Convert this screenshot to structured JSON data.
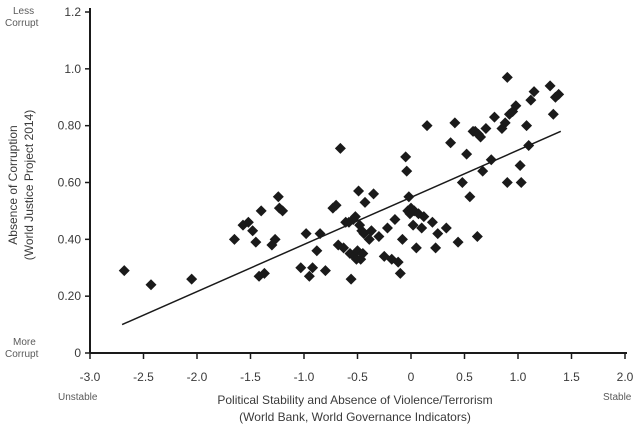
{
  "chart_data": {
    "type": "scatter",
    "xlabel": [
      "Political Stability and Absence of Violence/Terrorism",
      "(World Bank, World Governance Indicators)"
    ],
    "ylabel": [
      "Absence of Corruption",
      "(World Justice Project 2014)"
    ],
    "xlim": [
      -3.0,
      2.0
    ],
    "ylim": [
      0,
      1.2
    ],
    "x_ticks": [
      -3.0,
      -2.5,
      -2.0,
      -1.5,
      -1.0,
      -0.5,
      0,
      0.5,
      1.0,
      1.5,
      2.0
    ],
    "x_tick_labels": [
      "-3.0",
      "-2.5",
      "-2.0",
      "-1.5",
      "-1.0",
      "-0.5",
      "0",
      "0.5",
      "1.0",
      "1.5",
      "2.0"
    ],
    "y_ticks": [
      0,
      0.2,
      0.4,
      0.6,
      0.8,
      1.0,
      1.2
    ],
    "y_tick_labels": [
      "0",
      "0.20",
      "0.40",
      "0.60",
      "0.80",
      "1.0",
      "1.2"
    ],
    "annotations": {
      "x_left": "Unstable",
      "x_right": "Stable",
      "y_top": [
        "Less",
        "Corrupt"
      ],
      "y_bottom": [
        "More",
        "Corrupt"
      ]
    },
    "trendline": {
      "x": [
        -2.7,
        1.4
      ],
      "y": [
        0.1,
        0.78
      ]
    },
    "marker": "diamond",
    "color": "#1a1a1a",
    "points": [
      [
        -2.68,
        0.29
      ],
      [
        -2.43,
        0.24
      ],
      [
        -2.05,
        0.26
      ],
      [
        -1.65,
        0.4
      ],
      [
        -1.57,
        0.45
      ],
      [
        -1.52,
        0.46
      ],
      [
        -1.48,
        0.43
      ],
      [
        -1.45,
        0.39
      ],
      [
        -1.42,
        0.27
      ],
      [
        -1.4,
        0.5
      ],
      [
        -1.37,
        0.28
      ],
      [
        -1.3,
        0.38
      ],
      [
        -1.27,
        0.4
      ],
      [
        -1.24,
        0.55
      ],
      [
        -1.23,
        0.51
      ],
      [
        -1.2,
        0.5
      ],
      [
        -1.03,
        0.3
      ],
      [
        -0.98,
        0.42
      ],
      [
        -0.95,
        0.27
      ],
      [
        -0.92,
        0.3
      ],
      [
        -0.88,
        0.36
      ],
      [
        -0.85,
        0.42
      ],
      [
        -0.8,
        0.29
      ],
      [
        -0.73,
        0.51
      ],
      [
        -0.7,
        0.52
      ],
      [
        -0.68,
        0.38
      ],
      [
        -0.66,
        0.72
      ],
      [
        -0.63,
        0.37
      ],
      [
        -0.61,
        0.46
      ],
      [
        -0.58,
        0.46
      ],
      [
        -0.57,
        0.35
      ],
      [
        -0.56,
        0.26
      ],
      [
        -0.54,
        0.47
      ],
      [
        -0.53,
        0.34
      ],
      [
        -0.52,
        0.48
      ],
      [
        -0.51,
        0.33
      ],
      [
        -0.5,
        0.36
      ],
      [
        -0.49,
        0.57
      ],
      [
        -0.48,
        0.45
      ],
      [
        -0.47,
        0.33
      ],
      [
        -0.46,
        0.43
      ],
      [
        -0.45,
        0.35
      ],
      [
        -0.44,
        0.42
      ],
      [
        -0.43,
        0.53
      ],
      [
        -0.39,
        0.4
      ],
      [
        -0.37,
        0.43
      ],
      [
        -0.35,
        0.56
      ],
      [
        -0.3,
        0.41
      ],
      [
        -0.25,
        0.34
      ],
      [
        -0.22,
        0.44
      ],
      [
        -0.18,
        0.33
      ],
      [
        -0.15,
        0.47
      ],
      [
        -0.12,
        0.32
      ],
      [
        -0.1,
        0.28
      ],
      [
        -0.08,
        0.4
      ],
      [
        -0.05,
        0.69
      ],
      [
        -0.04,
        0.64
      ],
      [
        -0.03,
        0.5
      ],
      [
        -0.02,
        0.55
      ],
      [
        -0.01,
        0.49
      ],
      [
        0.0,
        0.51
      ],
      [
        0.02,
        0.45
      ],
      [
        0.03,
        0.5
      ],
      [
        0.05,
        0.37
      ],
      [
        0.07,
        0.49
      ],
      [
        0.1,
        0.44
      ],
      [
        0.12,
        0.48
      ],
      [
        0.15,
        0.8
      ],
      [
        0.2,
        0.46
      ],
      [
        0.23,
        0.37
      ],
      [
        0.25,
        0.42
      ],
      [
        0.33,
        0.44
      ],
      [
        0.37,
        0.74
      ],
      [
        0.41,
        0.81
      ],
      [
        0.44,
        0.39
      ],
      [
        0.48,
        0.6
      ],
      [
        0.52,
        0.7
      ],
      [
        0.55,
        0.55
      ],
      [
        0.58,
        0.78
      ],
      [
        0.6,
        0.78
      ],
      [
        0.62,
        0.41
      ],
      [
        0.63,
        0.77
      ],
      [
        0.65,
        0.76
      ],
      [
        0.67,
        0.64
      ],
      [
        0.7,
        0.79
      ],
      [
        0.75,
        0.68
      ],
      [
        0.78,
        0.83
      ],
      [
        0.85,
        0.79
      ],
      [
        0.88,
        0.81
      ],
      [
        0.9,
        0.97
      ],
      [
        0.9,
        0.6
      ],
      [
        0.92,
        0.84
      ],
      [
        0.95,
        0.85
      ],
      [
        0.98,
        0.87
      ],
      [
        1.02,
        0.66
      ],
      [
        1.03,
        0.6
      ],
      [
        1.08,
        0.8
      ],
      [
        1.1,
        0.73
      ],
      [
        1.12,
        0.89
      ],
      [
        1.15,
        0.92
      ],
      [
        1.3,
        0.94
      ],
      [
        1.33,
        0.84
      ],
      [
        1.35,
        0.9
      ],
      [
        1.38,
        0.91
      ]
    ]
  }
}
